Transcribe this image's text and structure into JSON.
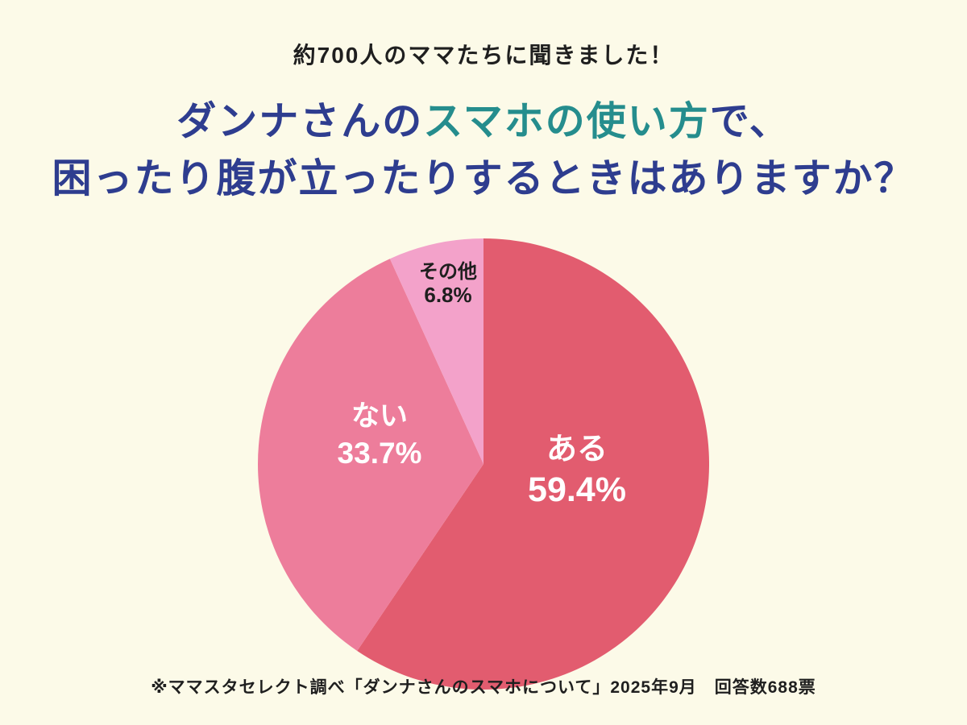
{
  "page": {
    "background": "#fcfae8",
    "subtitle": "約700人のママたちに聞きました！",
    "title": {
      "line1": [
        {
          "text": "ダンナさんの",
          "color": "#2e3d8f"
        },
        {
          "text": "スマホの使い方",
          "color": "#258d8d"
        },
        {
          "text": "で、",
          "color": "#2e3d8f"
        }
      ],
      "line2": {
        "text": "困ったり腹が立ったりするときはありますか？",
        "color": "#2e3d8f"
      }
    },
    "footnote": "※ママスタセレクト調べ「ダンナさんのスマホについて」2025年9月　回答数688票"
  },
  "chart_data": {
    "type": "pie",
    "title": "ダンナさんのスマホの使い方で、困ったり腹が立ったりするときはありますか？",
    "start_angle_deg": 0,
    "direction": "clockwise",
    "total_label": "回答数688票",
    "total_responses": 688,
    "slices": [
      {
        "label": "ある",
        "value_pct": 59.4,
        "pct_label": "59.4%",
        "color": "#e25c6f",
        "label_color": "#ffffff"
      },
      {
        "label": "ない",
        "value_pct": 33.7,
        "pct_label": "33.7%",
        "color": "#ed7d9b",
        "label_color": "#ffffff"
      },
      {
        "label": "その他",
        "value_pct": 6.8,
        "pct_label": "6.8%",
        "color": "#f3a2ca",
        "label_color": "#1f1f1f"
      }
    ]
  }
}
